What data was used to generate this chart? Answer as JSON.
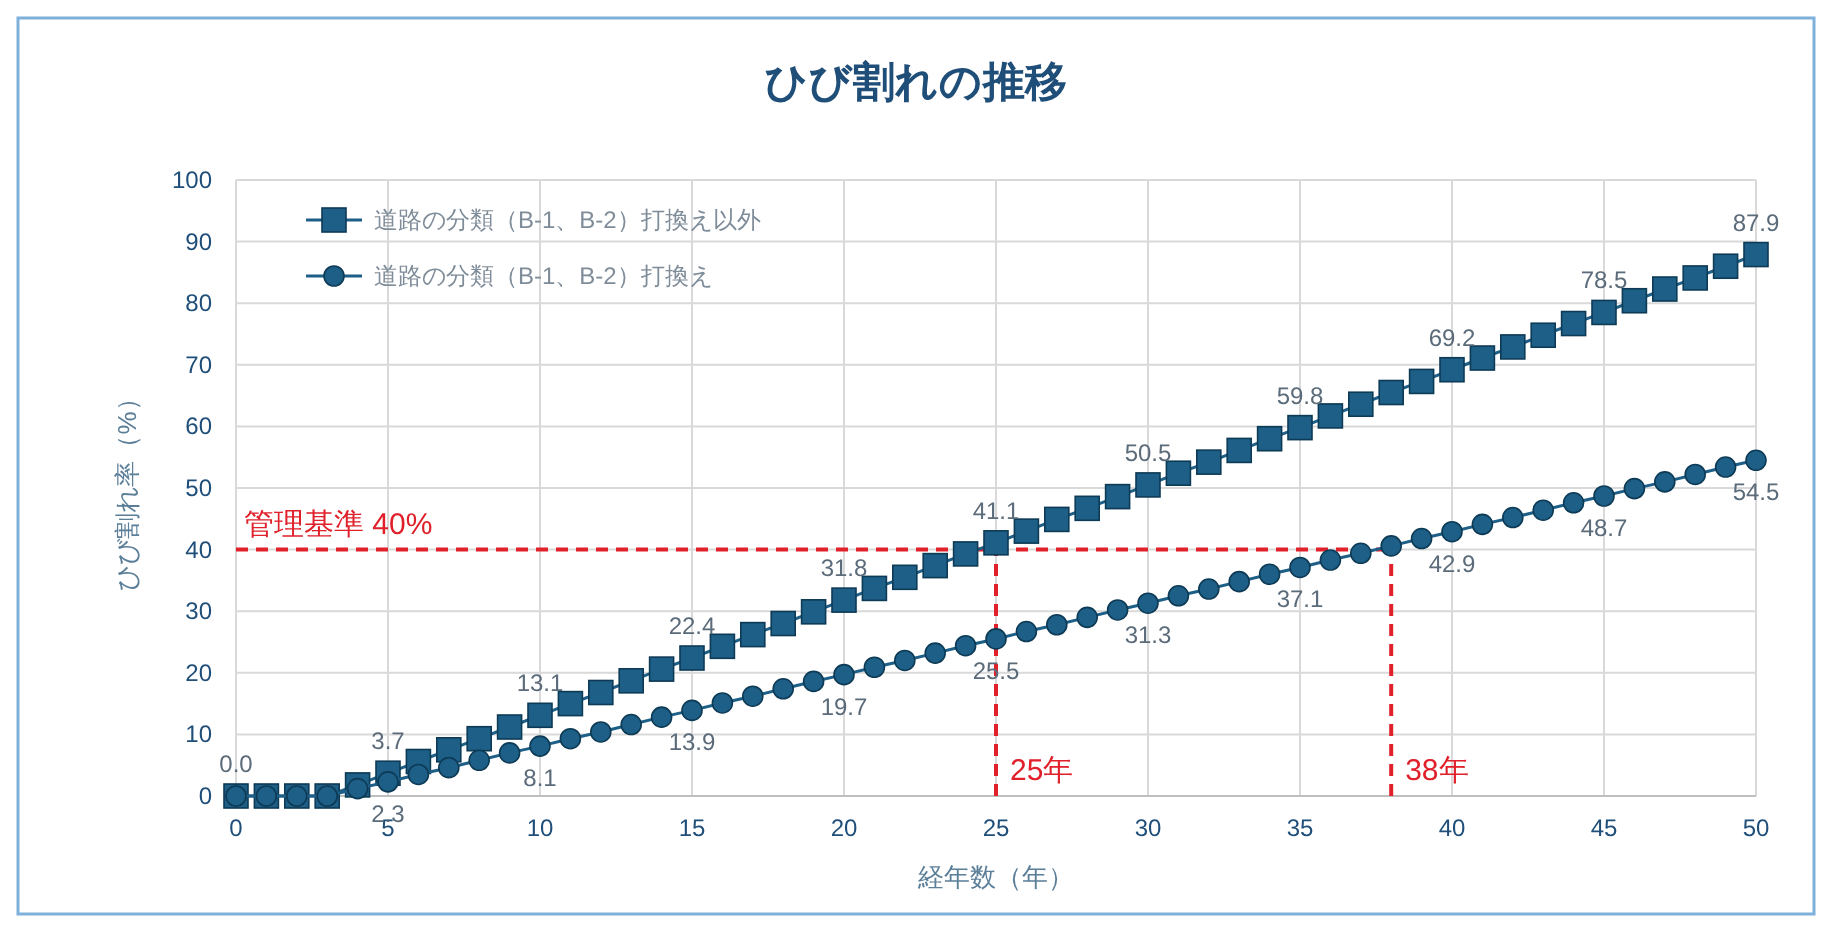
{
  "chart_data": {
    "type": "line",
    "title": "ひび割れの推移",
    "xlabel": "経年数（年）",
    "ylabel": "ひび割れ率（%）",
    "x": [
      0,
      1,
      2,
      3,
      4,
      5,
      6,
      7,
      8,
      9,
      10,
      11,
      12,
      13,
      14,
      15,
      16,
      17,
      18,
      19,
      20,
      21,
      22,
      23,
      24,
      25,
      26,
      27,
      28,
      29,
      30,
      31,
      32,
      33,
      34,
      35,
      36,
      37,
      38,
      39,
      40,
      41,
      42,
      43,
      44,
      45,
      46,
      47,
      48,
      49,
      50
    ],
    "series": [
      {
        "name": "道路の分類（B-1、B-2）打換え以外",
        "color": "#1d5f87",
        "marker": "square",
        "values": [
          0,
          0,
          0,
          0,
          1.8,
          3.7,
          5.6,
          7.5,
          9.3,
          11.2,
          13.1,
          15.0,
          16.8,
          18.7,
          20.6,
          22.4,
          24.3,
          26.2,
          28.0,
          29.9,
          31.8,
          33.7,
          35.5,
          37.4,
          39.3,
          41.1,
          43.0,
          44.9,
          46.7,
          48.6,
          50.5,
          52.4,
          54.2,
          56.1,
          58.0,
          59.8,
          61.7,
          63.6,
          65.5,
          67.3,
          69.2,
          71.1,
          72.9,
          74.8,
          76.7,
          78.5,
          80.4,
          82.3,
          84.1,
          86.0,
          87.9
        ],
        "value_labels": [
          "0.0",
          null,
          null,
          null,
          null,
          "3.7",
          null,
          null,
          null,
          null,
          "13.1",
          null,
          null,
          null,
          null,
          "22.4",
          null,
          null,
          null,
          null,
          "31.8",
          null,
          null,
          null,
          null,
          "41.1",
          null,
          null,
          null,
          null,
          "50.5",
          null,
          null,
          null,
          null,
          "59.8",
          null,
          null,
          null,
          null,
          "69.2",
          null,
          null,
          null,
          null,
          "78.5",
          null,
          null,
          null,
          null,
          "87.9"
        ]
      },
      {
        "name": "道路の分類（B-1、B-2）打換え",
        "color": "#1d5f87",
        "marker": "circle",
        "values": [
          0,
          0,
          0,
          0,
          1.2,
          2.3,
          3.5,
          4.6,
          5.8,
          7.0,
          8.1,
          9.3,
          10.4,
          11.6,
          12.8,
          13.9,
          15.1,
          16.2,
          17.4,
          18.6,
          19.7,
          20.9,
          22.0,
          23.2,
          24.4,
          25.5,
          26.7,
          27.8,
          29.0,
          30.2,
          31.3,
          32.5,
          33.6,
          34.8,
          36.0,
          37.1,
          38.3,
          39.4,
          40.6,
          41.8,
          42.9,
          44.1,
          45.2,
          46.4,
          47.6,
          48.7,
          49.9,
          51.0,
          52.2,
          53.4,
          54.5
        ],
        "value_labels": [
          null,
          null,
          null,
          null,
          null,
          "2.3",
          null,
          null,
          null,
          null,
          "8.1",
          null,
          null,
          null,
          null,
          "13.9",
          null,
          null,
          null,
          null,
          "19.7",
          null,
          null,
          null,
          null,
          "25.5",
          null,
          null,
          null,
          null,
          "31.3",
          null,
          null,
          null,
          null,
          "37.1",
          null,
          null,
          null,
          null,
          "42.9",
          null,
          null,
          null,
          null,
          "48.7",
          null,
          null,
          null,
          null,
          "54.5"
        ]
      }
    ],
    "xlim": [
      0,
      50
    ],
    "xticks": [
      0,
      5,
      10,
      15,
      20,
      25,
      30,
      35,
      40,
      45,
      50
    ],
    "ylim": [
      0,
      100
    ],
    "yticks": [
      0,
      10,
      20,
      30,
      40,
      50,
      60,
      70,
      80,
      90,
      100
    ],
    "ref_lines": [
      {
        "axis": "y",
        "value": 40,
        "label": "管理基準 40%",
        "color": "#e0202a",
        "line_style": "dashed"
      },
      {
        "axis": "x",
        "value": 25,
        "label": "25年",
        "color": "#e0202a",
        "line_style": "dashed"
      },
      {
        "axis": "x",
        "value": 38,
        "label": "38年",
        "color": "#e0202a",
        "line_style": "dashed"
      }
    ],
    "grid": true,
    "legend": "top left",
    "line_style": "solid"
  }
}
